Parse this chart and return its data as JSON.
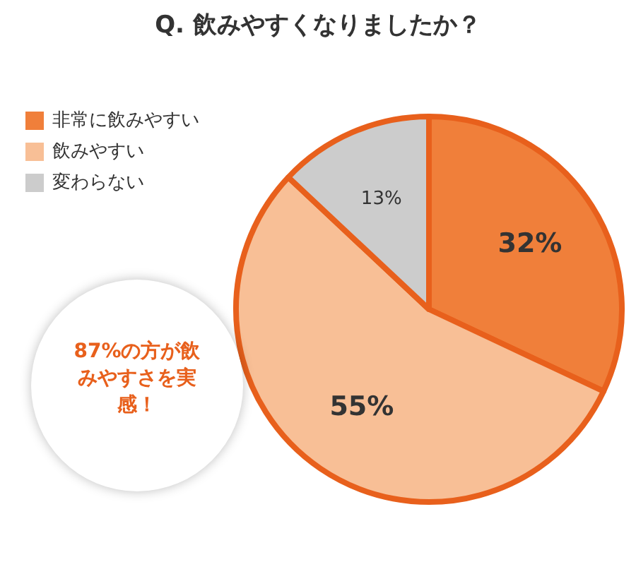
{
  "chart_data": {
    "type": "pie",
    "title": "Q. 飲みやすくなりましたか？",
    "categories": [
      "非常に飲みやすい",
      "飲みやすい",
      "変わらない"
    ],
    "values": [
      32,
      55,
      13
    ],
    "colors": [
      "#f07f3a",
      "#f8bf96",
      "#cccccc"
    ],
    "value_labels": [
      "32%",
      "55%",
      "13%"
    ],
    "legend": "top left",
    "annotations": [
      "87%の方が飲みやすさを実感！"
    ]
  }
}
